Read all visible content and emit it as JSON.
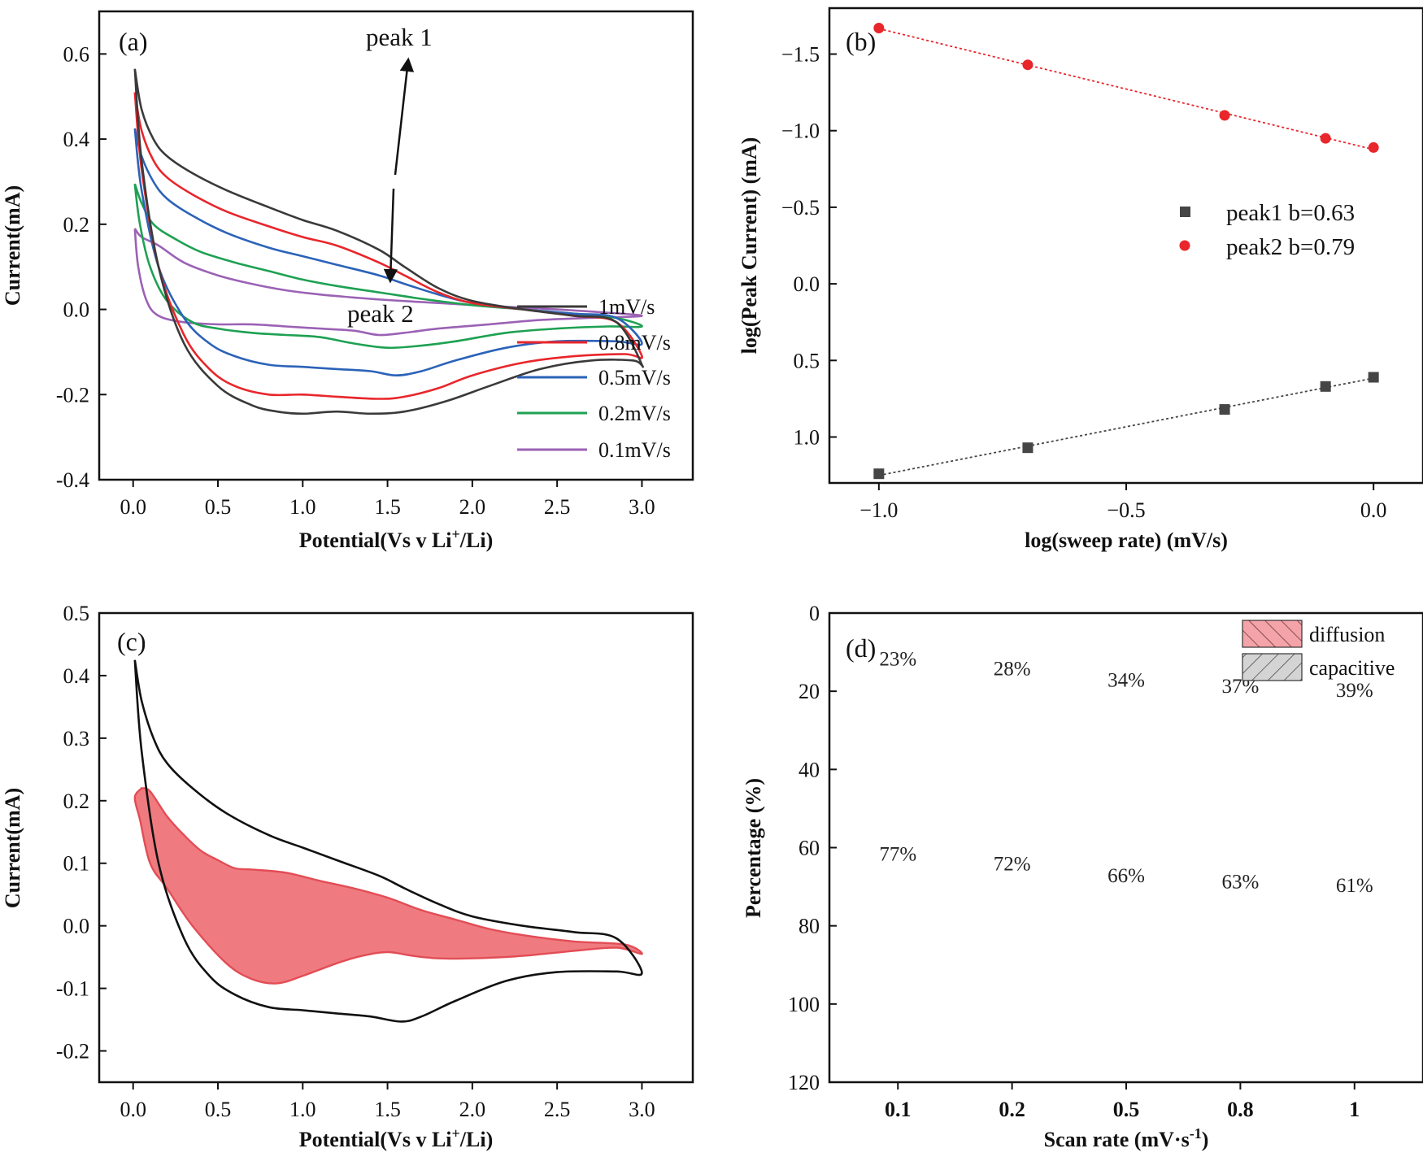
{
  "chart_data": [
    {
      "panel": "(a)",
      "type": "line",
      "xlabel": "Potential(Vs v Li",
      "xlabel_sup": "+",
      "xlabel_end": "/Li)",
      "ylabel": "Current(mA)",
      "xlim": [
        -0.2,
        3.3
      ],
      "ylim": [
        0.7,
        -0.4
      ],
      "x_ticks": [
        "0.0",
        "0.5",
        "1.0",
        "1.5",
        "2.0",
        "2.5",
        "3.0"
      ],
      "y_ticks": [
        "-0.4",
        "-0.2",
        "0.0",
        "0.2",
        "0.4",
        "0.6"
      ],
      "annotations": {
        "peak1": "peak 1",
        "peak2": "peak 2"
      },
      "series": [
        {
          "name": "1mV/s",
          "color": "#3a3a3a",
          "cathodic": [
            [
              0.01,
              0.565
            ],
            [
              0.05,
              0.47
            ],
            [
              0.12,
              0.4
            ],
            [
              0.2,
              0.36
            ],
            [
              0.35,
              0.32
            ],
            [
              0.55,
              0.28
            ],
            [
              0.8,
              0.24
            ],
            [
              1.0,
              0.21
            ],
            [
              1.2,
              0.185
            ],
            [
              1.45,
              0.14
            ],
            [
              1.6,
              0.1
            ],
            [
              1.8,
              0.05
            ],
            [
              2.0,
              0.02
            ],
            [
              2.3,
              0.0
            ],
            [
              2.6,
              -0.015
            ],
            [
              2.85,
              -0.03
            ],
            [
              3.0,
              -0.13
            ]
          ],
          "anodic": [
            [
              3.0,
              -0.13
            ],
            [
              2.95,
              -0.12
            ],
            [
              2.7,
              -0.12
            ],
            [
              2.4,
              -0.14
            ],
            [
              2.1,
              -0.18
            ],
            [
              1.85,
              -0.215
            ],
            [
              1.6,
              -0.24
            ],
            [
              1.4,
              -0.245
            ],
            [
              1.2,
              -0.24
            ],
            [
              1.0,
              -0.245
            ],
            [
              0.85,
              -0.24
            ],
            [
              0.7,
              -0.225
            ],
            [
              0.5,
              -0.18
            ],
            [
              0.3,
              -0.08
            ],
            [
              0.15,
              0.1
            ],
            [
              0.05,
              0.35
            ],
            [
              0.01,
              0.565
            ]
          ]
        },
        {
          "name": "0.8mV/s",
          "color": "#e8262b",
          "cathodic": [
            [
              0.01,
              0.51
            ],
            [
              0.05,
              0.42
            ],
            [
              0.12,
              0.35
            ],
            [
              0.2,
              0.31
            ],
            [
              0.35,
              0.27
            ],
            [
              0.55,
              0.23
            ],
            [
              0.8,
              0.195
            ],
            [
              1.0,
              0.17
            ],
            [
              1.2,
              0.15
            ],
            [
              1.45,
              0.11
            ],
            [
              1.6,
              0.08
            ],
            [
              1.8,
              0.04
            ],
            [
              2.0,
              0.015
            ],
            [
              2.3,
              0.0
            ],
            [
              2.6,
              -0.015
            ],
            [
              2.85,
              -0.03
            ],
            [
              3.0,
              -0.11
            ]
          ],
          "anodic": [
            [
              3.0,
              -0.11
            ],
            [
              2.9,
              -0.105
            ],
            [
              2.6,
              -0.11
            ],
            [
              2.3,
              -0.125
            ],
            [
              2.0,
              -0.155
            ],
            [
              1.8,
              -0.185
            ],
            [
              1.6,
              -0.205
            ],
            [
              1.45,
              -0.21
            ],
            [
              1.2,
              -0.205
            ],
            [
              1.0,
              -0.2
            ],
            [
              0.8,
              -0.2
            ],
            [
              0.6,
              -0.18
            ],
            [
              0.45,
              -0.14
            ],
            [
              0.3,
              -0.06
            ],
            [
              0.15,
              0.1
            ],
            [
              0.05,
              0.33
            ],
            [
              0.01,
              0.51
            ]
          ]
        },
        {
          "name": "0.5mV/s",
          "color": "#2b63b8",
          "cathodic": [
            [
              0.01,
              0.425
            ],
            [
              0.05,
              0.36
            ],
            [
              0.12,
              0.3
            ],
            [
              0.2,
              0.26
            ],
            [
              0.35,
              0.22
            ],
            [
              0.55,
              0.18
            ],
            [
              0.8,
              0.145
            ],
            [
              1.0,
              0.125
            ],
            [
              1.2,
              0.105
            ],
            [
              1.45,
              0.08
            ],
            [
              1.6,
              0.06
            ],
            [
              1.8,
              0.035
            ],
            [
              2.0,
              0.015
            ],
            [
              2.3,
              0.0
            ],
            [
              2.6,
              -0.01
            ],
            [
              2.85,
              -0.02
            ],
            [
              3.0,
              -0.08
            ]
          ],
          "anodic": [
            [
              3.0,
              -0.08
            ],
            [
              2.85,
              -0.075
            ],
            [
              2.5,
              -0.075
            ],
            [
              2.2,
              -0.09
            ],
            [
              1.9,
              -0.12
            ],
            [
              1.7,
              -0.145
            ],
            [
              1.55,
              -0.155
            ],
            [
              1.4,
              -0.145
            ],
            [
              1.2,
              -0.14
            ],
            [
              1.0,
              -0.135
            ],
            [
              0.8,
              -0.13
            ],
            [
              0.6,
              -0.11
            ],
            [
              0.45,
              -0.08
            ],
            [
              0.3,
              -0.02
            ],
            [
              0.15,
              0.1
            ],
            [
              0.05,
              0.28
            ],
            [
              0.01,
              0.425
            ]
          ]
        },
        {
          "name": "0.2mV/s",
          "color": "#1ea152",
          "cathodic": [
            [
              0.01,
              0.295
            ],
            [
              0.05,
              0.25
            ],
            [
              0.12,
              0.2
            ],
            [
              0.25,
              0.165
            ],
            [
              0.4,
              0.135
            ],
            [
              0.6,
              0.11
            ],
            [
              0.8,
              0.09
            ],
            [
              1.0,
              0.07
            ],
            [
              1.2,
              0.055
            ],
            [
              1.45,
              0.04
            ],
            [
              1.7,
              0.025
            ],
            [
              2.0,
              0.01
            ],
            [
              2.3,
              0.0
            ],
            [
              2.6,
              -0.01
            ],
            [
              2.85,
              -0.02
            ],
            [
              3.0,
              -0.04
            ]
          ],
          "anodic": [
            [
              3.0,
              -0.04
            ],
            [
              2.8,
              -0.04
            ],
            [
              2.5,
              -0.045
            ],
            [
              2.2,
              -0.055
            ],
            [
              1.9,
              -0.075
            ],
            [
              1.7,
              -0.085
            ],
            [
              1.5,
              -0.09
            ],
            [
              1.3,
              -0.08
            ],
            [
              1.1,
              -0.065
            ],
            [
              0.9,
              -0.06
            ],
            [
              0.7,
              -0.055
            ],
            [
              0.5,
              -0.045
            ],
            [
              0.35,
              -0.03
            ],
            [
              0.2,
              0.02
            ],
            [
              0.1,
              0.1
            ],
            [
              0.04,
              0.2
            ],
            [
              0.01,
              0.295
            ]
          ]
        },
        {
          "name": "0.1mV/s",
          "color": "#9b62b5",
          "cathodic": [
            [
              0.01,
              0.19
            ],
            [
              0.05,
              0.17
            ],
            [
              0.15,
              0.15
            ],
            [
              0.3,
              0.11
            ],
            [
              0.5,
              0.08
            ],
            [
              0.7,
              0.06
            ],
            [
              0.9,
              0.045
            ],
            [
              1.1,
              0.035
            ],
            [
              1.3,
              0.028
            ],
            [
              1.5,
              0.022
            ],
            [
              1.8,
              0.015
            ],
            [
              2.1,
              0.008
            ],
            [
              2.4,
              0.002
            ],
            [
              2.7,
              -0.005
            ],
            [
              3.0,
              -0.015
            ]
          ],
          "anodic": [
            [
              3.0,
              -0.015
            ],
            [
              2.7,
              -0.02
            ],
            [
              2.4,
              -0.025
            ],
            [
              2.1,
              -0.035
            ],
            [
              1.8,
              -0.045
            ],
            [
              1.6,
              -0.055
            ],
            [
              1.45,
              -0.06
            ],
            [
              1.3,
              -0.05
            ],
            [
              1.1,
              -0.045
            ],
            [
              0.9,
              -0.04
            ],
            [
              0.7,
              -0.035
            ],
            [
              0.5,
              -0.035
            ],
            [
              0.3,
              -0.03
            ],
            [
              0.15,
              -0.015
            ],
            [
              0.08,
              0.02
            ],
            [
              0.03,
              0.1
            ],
            [
              0.01,
              0.19
            ]
          ]
        }
      ]
    },
    {
      "panel": "(b)",
      "type": "scatter",
      "xlabel": "log(sweep rate) (mV/s)",
      "ylabel": "log(Peak Current) (mA)",
      "xlim": [
        -1.1,
        0.1
      ],
      "ylim": [
        -1.8,
        1.3
      ],
      "x_ticks": [
        "−1.0",
        "−0.5",
        "0.0"
      ],
      "y_ticks": [
        "1.0",
        "0.5",
        "0.0",
        "−0.5",
        "−1.0",
        "−1.5"
      ],
      "series": [
        {
          "name": "peak1 b=0.63",
          "color": "#454545",
          "marker": "square",
          "x": [
            -1.0,
            -0.699,
            -0.301,
            -0.097,
            0.0
          ],
          "y": [
            1.24,
            1.07,
            0.82,
            0.67,
            0.61
          ]
        },
        {
          "name": "peak2 b=0.79",
          "color": "#e8262b",
          "marker": "circle",
          "x": [
            -1.0,
            -0.699,
            -0.301,
            -0.097,
            0.0
          ],
          "y": [
            -1.67,
            -1.43,
            -1.1,
            -0.95,
            -0.89
          ]
        }
      ]
    },
    {
      "panel": "(c)",
      "type": "line",
      "xlabel": "Potential(Vs v Li",
      "xlabel_sup": "+",
      "xlabel_end": "/Li)",
      "ylabel": "Current(mA)",
      "xlim": [
        -0.2,
        3.3
      ],
      "ylim": [
        0.5,
        -0.25
      ],
      "x_ticks": [
        "0.0",
        "0.5",
        "1.0",
        "1.5",
        "2.0",
        "2.5",
        "3.0"
      ],
      "y_ticks": [
        "-0.2",
        "-0.1",
        "0.0",
        "0.1",
        "0.2",
        "0.3",
        "0.4",
        "0.5"
      ],
      "outline": [
        [
          0.01,
          0.425
        ],
        [
          0.05,
          0.36
        ],
        [
          0.12,
          0.3
        ],
        [
          0.2,
          0.26
        ],
        [
          0.35,
          0.22
        ],
        [
          0.55,
          0.18
        ],
        [
          0.8,
          0.145
        ],
        [
          1.0,
          0.125
        ],
        [
          1.2,
          0.105
        ],
        [
          1.45,
          0.08
        ],
        [
          1.6,
          0.06
        ],
        [
          1.8,
          0.035
        ],
        [
          2.0,
          0.015
        ],
        [
          2.3,
          0.0
        ],
        [
          2.6,
          -0.01
        ],
        [
          2.85,
          -0.02
        ],
        [
          3.0,
          -0.075
        ],
        [
          2.85,
          -0.073
        ],
        [
          2.5,
          -0.074
        ],
        [
          2.2,
          -0.088
        ],
        [
          1.9,
          -0.12
        ],
        [
          1.7,
          -0.145
        ],
        [
          1.58,
          -0.153
        ],
        [
          1.4,
          -0.145
        ],
        [
          1.2,
          -0.14
        ],
        [
          1.0,
          -0.135
        ],
        [
          0.8,
          -0.13
        ],
        [
          0.6,
          -0.11
        ],
        [
          0.45,
          -0.08
        ],
        [
          0.3,
          -0.02
        ],
        [
          0.15,
          0.1
        ],
        [
          0.05,
          0.28
        ],
        [
          0.01,
          0.425
        ]
      ],
      "capacitive_fill": [
        [
          0.05,
          0.22
        ],
        [
          0.01,
          0.205
        ],
        [
          0.04,
          0.17
        ],
        [
          0.1,
          0.1
        ],
        [
          0.2,
          0.06
        ],
        [
          0.35,
          0.0
        ],
        [
          0.55,
          -0.06
        ],
        [
          0.7,
          -0.085
        ],
        [
          0.85,
          -0.092
        ],
        [
          1.0,
          -0.08
        ],
        [
          1.2,
          -0.06
        ],
        [
          1.35,
          -0.048
        ],
        [
          1.5,
          -0.042
        ],
        [
          1.65,
          -0.048
        ],
        [
          1.8,
          -0.052
        ],
        [
          2.0,
          -0.052
        ],
        [
          2.3,
          -0.048
        ],
        [
          2.6,
          -0.04
        ],
        [
          2.85,
          -0.035
        ],
        [
          3.0,
          -0.045
        ],
        [
          2.9,
          -0.03
        ],
        [
          2.6,
          -0.025
        ],
        [
          2.3,
          -0.015
        ],
        [
          2.1,
          -0.005
        ],
        [
          1.9,
          0.01
        ],
        [
          1.7,
          0.025
        ],
        [
          1.5,
          0.045
        ],
        [
          1.3,
          0.06
        ],
        [
          1.1,
          0.072
        ],
        [
          0.9,
          0.085
        ],
        [
          0.7,
          0.09
        ],
        [
          0.6,
          0.092
        ],
        [
          0.5,
          0.105
        ],
        [
          0.4,
          0.12
        ],
        [
          0.3,
          0.145
        ],
        [
          0.2,
          0.175
        ],
        [
          0.1,
          0.215
        ],
        [
          0.05,
          0.22
        ]
      ],
      "fill_color": "#ef7b80",
      "edge_color": "#e24d55"
    },
    {
      "panel": "(d)",
      "type": "bar",
      "stacked": true,
      "xlabel": "Scan rate (mV·s",
      "xlabel_sup": "-1",
      "xlabel_end": ")",
      "ylabel": "Percentage (%)",
      "ylim": [
        0,
        120
      ],
      "y_ticks": [
        "0",
        "20",
        "40",
        "60",
        "80",
        "100",
        "120"
      ],
      "categories": [
        "0.1",
        "0.2",
        "0.5",
        "0.8",
        "1"
      ],
      "series": [
        {
          "name": "capacitive",
          "color": "#d3d3d3",
          "values": [
            23,
            28,
            34,
            37,
            39
          ],
          "labels": [
            "23%",
            "28%",
            "34%",
            "37%",
            "39%"
          ]
        },
        {
          "name": "diffusion",
          "color": "#f2a4a8",
          "values": [
            77,
            72,
            66,
            63,
            61
          ],
          "labels": [
            "77%",
            "72%",
            "66%",
            "63%",
            "61%"
          ]
        }
      ]
    }
  ]
}
